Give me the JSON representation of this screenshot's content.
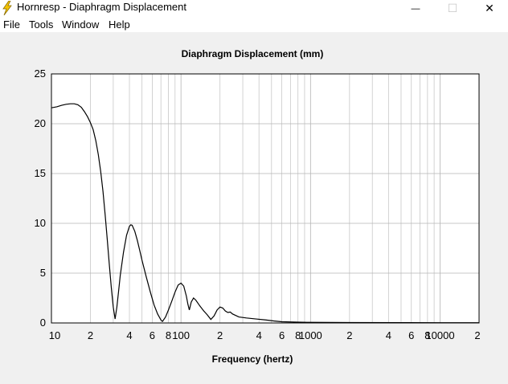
{
  "window": {
    "title": "Hornresp - Diaphragm Displacement",
    "minimize_glyph": "—",
    "maximize_glyph": "☐",
    "close_glyph": "✕",
    "app_icon": "lightning-bolt-icon"
  },
  "menu": {
    "items": [
      "File",
      "Tools",
      "Window",
      "Help"
    ]
  },
  "colors": {
    "background": "#f0f0f0",
    "plot_background": "#ffffff",
    "grid": "#c8c8c8",
    "curve": "#000000",
    "icon_yellow": "#f5c400"
  },
  "chart_data": {
    "type": "line",
    "title": "Diaphragm Displacement (mm)",
    "xlabel": "Frequency (hertz)",
    "ylabel": "",
    "x_scale": "log",
    "xlim": [
      10,
      20000
    ],
    "ylim": [
      0,
      25
    ],
    "grid": true,
    "y_ticks": [
      0,
      5,
      10,
      15,
      20,
      25
    ],
    "x_ticks": [
      {
        "value": 10,
        "label": "10"
      },
      {
        "value": 20,
        "label": "2"
      },
      {
        "value": 40,
        "label": "4"
      },
      {
        "value": 60,
        "label": "6"
      },
      {
        "value": 80,
        "label": "8"
      },
      {
        "value": 100,
        "label": "100"
      },
      {
        "value": 200,
        "label": "2"
      },
      {
        "value": 400,
        "label": "4"
      },
      {
        "value": 600,
        "label": "6"
      },
      {
        "value": 800,
        "label": "8"
      },
      {
        "value": 1000,
        "label": "1000"
      },
      {
        "value": 2000,
        "label": "2"
      },
      {
        "value": 4000,
        "label": "4"
      },
      {
        "value": 6000,
        "label": "6"
      },
      {
        "value": 8000,
        "label": "8"
      },
      {
        "value": 10000,
        "label": "10000"
      },
      {
        "value": 20000,
        "label": "2"
      }
    ],
    "series": [
      {
        "points": [
          [
            10,
            21.6
          ],
          [
            11,
            21.7
          ],
          [
            12,
            21.85
          ],
          [
            13,
            21.95
          ],
          [
            14,
            22.0
          ],
          [
            15,
            22.0
          ],
          [
            16,
            21.9
          ],
          [
            17,
            21.65
          ],
          [
            18,
            21.2
          ],
          [
            19,
            20.7
          ],
          [
            20,
            20.1
          ],
          [
            21,
            19.4
          ],
          [
            22,
            18.3
          ],
          [
            23,
            16.9
          ],
          [
            24,
            15.2
          ],
          [
            25,
            13.2
          ],
          [
            26,
            10.8
          ],
          [
            27,
            8.3
          ],
          [
            28,
            5.8
          ],
          [
            29,
            3.5
          ],
          [
            30,
            1.6
          ],
          [
            31,
            0.4
          ],
          [
            32,
            1.6
          ],
          [
            33,
            3.2
          ],
          [
            34,
            4.8
          ],
          [
            36,
            7.1
          ],
          [
            38,
            8.8
          ],
          [
            40,
            9.7
          ],
          [
            41,
            9.85
          ],
          [
            42,
            9.8
          ],
          [
            44,
            9.2
          ],
          [
            46,
            8.3
          ],
          [
            48,
            7.3
          ],
          [
            50,
            6.3
          ],
          [
            54,
            4.6
          ],
          [
            58,
            3.1
          ],
          [
            62,
            1.8
          ],
          [
            66,
            0.9
          ],
          [
            70,
            0.3
          ],
          [
            72,
            0.15
          ],
          [
            76,
            0.6
          ],
          [
            80,
            1.3
          ],
          [
            85,
            2.2
          ],
          [
            90,
            3.1
          ],
          [
            95,
            3.8
          ],
          [
            100,
            4.0
          ],
          [
            105,
            3.7
          ],
          [
            110,
            2.7
          ],
          [
            113,
            1.9
          ],
          [
            116,
            1.3
          ],
          [
            120,
            2.1
          ],
          [
            125,
            2.5
          ],
          [
            130,
            2.3
          ],
          [
            140,
            1.7
          ],
          [
            150,
            1.2
          ],
          [
            160,
            0.8
          ],
          [
            170,
            0.35
          ],
          [
            180,
            0.7
          ],
          [
            190,
            1.3
          ],
          [
            200,
            1.6
          ],
          [
            210,
            1.5
          ],
          [
            220,
            1.2
          ],
          [
            230,
            1.05
          ],
          [
            240,
            1.1
          ],
          [
            250,
            0.9
          ],
          [
            280,
            0.6
          ],
          [
            320,
            0.5
          ],
          [
            380,
            0.4
          ],
          [
            450,
            0.3
          ],
          [
            520,
            0.2
          ],
          [
            600,
            0.12
          ],
          [
            800,
            0.08
          ],
          [
            1000,
            0.06
          ],
          [
            2000,
            0.04
          ],
          [
            5000,
            0.03
          ],
          [
            10000,
            0.02
          ],
          [
            20000,
            0.02
          ]
        ]
      }
    ]
  }
}
